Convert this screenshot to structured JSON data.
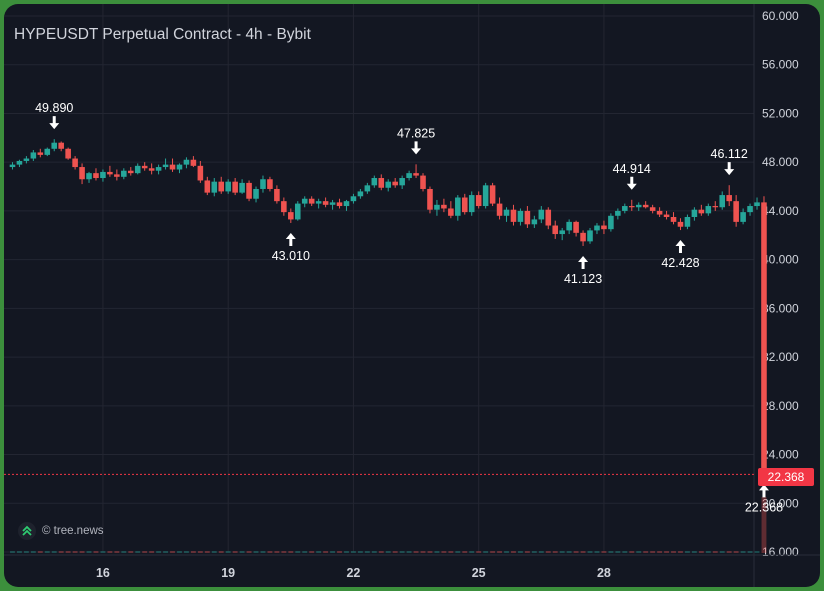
{
  "title": "HYPEUSDT Perpetual Contract - 4h - Bybit",
  "watermark": "© tree.news",
  "last_price": "22.368",
  "colors": {
    "up": "#26a69a",
    "down": "#ef5350",
    "bg": "#131722",
    "grid": "#232632",
    "axis_text": "#d1d4dc",
    "last_line": "#f23645"
  },
  "chart_data": {
    "type": "candlestick",
    "title": "HYPEUSDT Perpetual Contract - 4h - Bybit",
    "ylim": [
      16,
      60
    ],
    "y_ticks": [
      "60.000",
      "56.000",
      "52.000",
      "48.000",
      "44.000",
      "40.000",
      "36.000",
      "32.000",
      "28.000",
      "24.000",
      "20.000",
      "16.000"
    ],
    "x_ticks": [
      {
        "label": "16",
        "day": 16
      },
      {
        "label": "19",
        "day": 19
      },
      {
        "label": "22",
        "day": 22
      },
      {
        "label": "25",
        "day": 25
      },
      {
        "label": "28",
        "day": 28
      }
    ],
    "x_start_day": 13.75,
    "candles": [
      [
        47.6,
        48.0,
        47.4,
        47.8
      ],
      [
        47.8,
        48.2,
        47.6,
        48.1
      ],
      [
        48.1,
        48.5,
        47.9,
        48.3
      ],
      [
        48.3,
        49.0,
        48.1,
        48.8
      ],
      [
        48.8,
        49.1,
        48.4,
        48.6
      ],
      [
        48.6,
        49.2,
        48.5,
        49.1
      ],
      [
        49.1,
        49.89,
        48.9,
        49.6
      ],
      [
        49.6,
        49.7,
        48.9,
        49.1
      ],
      [
        49.1,
        49.2,
        48.2,
        48.3
      ],
      [
        48.3,
        48.5,
        47.4,
        47.6
      ],
      [
        47.6,
        47.9,
        46.2,
        46.6
      ],
      [
        46.6,
        47.2,
        46.3,
        47.1
      ],
      [
        47.1,
        47.5,
        46.5,
        46.7
      ],
      [
        46.7,
        47.4,
        46.4,
        47.2
      ],
      [
        47.2,
        47.7,
        46.8,
        47.0
      ],
      [
        47.0,
        47.4,
        46.5,
        46.8
      ],
      [
        46.8,
        47.5,
        46.6,
        47.3
      ],
      [
        47.3,
        47.6,
        46.9,
        47.1
      ],
      [
        47.1,
        47.9,
        47.0,
        47.7
      ],
      [
        47.7,
        48.0,
        47.3,
        47.5
      ],
      [
        47.5,
        47.9,
        47.0,
        47.3
      ],
      [
        47.3,
        47.8,
        47.0,
        47.6
      ],
      [
        47.6,
        48.3,
        47.4,
        47.8
      ],
      [
        47.8,
        48.3,
        47.2,
        47.4
      ],
      [
        47.4,
        47.9,
        47.1,
        47.8
      ],
      [
        47.8,
        48.4,
        47.5,
        48.2
      ],
      [
        48.2,
        48.5,
        47.6,
        47.7
      ],
      [
        47.7,
        48.1,
        46.3,
        46.5
      ],
      [
        46.5,
        46.8,
        45.3,
        45.5
      ],
      [
        45.5,
        46.7,
        45.2,
        46.4
      ],
      [
        46.4,
        46.8,
        45.4,
        45.6
      ],
      [
        45.6,
        46.6,
        45.4,
        46.4
      ],
      [
        46.4,
        46.7,
        45.3,
        45.5
      ],
      [
        45.5,
        46.6,
        45.4,
        46.3
      ],
      [
        46.3,
        46.5,
        44.8,
        45.0
      ],
      [
        45.0,
        46.0,
        44.7,
        45.8
      ],
      [
        45.8,
        46.9,
        45.5,
        46.6
      ],
      [
        46.6,
        46.8,
        45.6,
        45.8
      ],
      [
        45.8,
        46.1,
        44.6,
        44.8
      ],
      [
        44.8,
        45.1,
        43.6,
        43.9
      ],
      [
        43.9,
        44.2,
        43.01,
        43.3
      ],
      [
        43.3,
        44.8,
        43.2,
        44.6
      ],
      [
        44.6,
        45.2,
        44.3,
        45.0
      ],
      [
        45.0,
        45.2,
        44.4,
        44.6
      ],
      [
        44.6,
        45.0,
        44.2,
        44.8
      ],
      [
        44.8,
        45.1,
        44.3,
        44.5
      ],
      [
        44.5,
        44.9,
        44.1,
        44.7
      ],
      [
        44.7,
        45.0,
        44.2,
        44.4
      ],
      [
        44.4,
        44.9,
        44.0,
        44.8
      ],
      [
        44.8,
        45.4,
        44.6,
        45.2
      ],
      [
        45.2,
        45.8,
        45.0,
        45.6
      ],
      [
        45.6,
        46.3,
        45.4,
        46.1
      ],
      [
        46.1,
        46.9,
        45.9,
        46.7
      ],
      [
        46.7,
        47.0,
        45.7,
        45.9
      ],
      [
        45.9,
        46.6,
        45.6,
        46.4
      ],
      [
        46.4,
        46.7,
        45.9,
        46.1
      ],
      [
        46.1,
        46.9,
        45.8,
        46.7
      ],
      [
        46.7,
        47.3,
        46.5,
        47.1
      ],
      [
        47.1,
        47.825,
        46.7,
        46.9
      ],
      [
        46.9,
        47.1,
        45.6,
        45.8
      ],
      [
        45.8,
        46.0,
        43.8,
        44.1
      ],
      [
        44.1,
        44.9,
        43.6,
        44.5
      ],
      [
        44.5,
        45.0,
        43.9,
        44.2
      ],
      [
        44.2,
        44.8,
        43.4,
        43.6
      ],
      [
        43.6,
        45.3,
        43.2,
        45.1
      ],
      [
        45.1,
        45.4,
        43.7,
        43.9
      ],
      [
        43.9,
        45.6,
        43.6,
        45.3
      ],
      [
        45.3,
        45.6,
        44.2,
        44.4
      ],
      [
        44.4,
        46.3,
        44.2,
        46.1
      ],
      [
        46.1,
        46.3,
        44.4,
        44.6
      ],
      [
        44.6,
        45.1,
        43.3,
        43.6
      ],
      [
        43.6,
        44.3,
        43.1,
        44.1
      ],
      [
        44.1,
        44.5,
        42.8,
        43.1
      ],
      [
        43.1,
        44.2,
        42.8,
        44.0
      ],
      [
        44.0,
        44.4,
        42.6,
        42.9
      ],
      [
        42.9,
        43.6,
        42.6,
        43.3
      ],
      [
        43.3,
        44.4,
        43.0,
        44.1
      ],
      [
        44.1,
        44.3,
        42.5,
        42.8
      ],
      [
        42.8,
        43.2,
        41.7,
        42.1
      ],
      [
        42.1,
        42.6,
        41.6,
        42.4
      ],
      [
        42.4,
        43.3,
        42.1,
        43.1
      ],
      [
        43.1,
        43.2,
        41.9,
        42.2
      ],
      [
        42.2,
        42.4,
        41.123,
        41.5
      ],
      [
        41.5,
        42.6,
        41.3,
        42.4
      ],
      [
        42.4,
        43.0,
        42.1,
        42.8
      ],
      [
        42.8,
        43.2,
        42.1,
        42.5
      ],
      [
        42.5,
        43.8,
        42.3,
        43.6
      ],
      [
        43.6,
        44.2,
        43.3,
        44.0
      ],
      [
        44.0,
        44.6,
        43.8,
        44.4
      ],
      [
        44.4,
        44.914,
        44.0,
        44.3
      ],
      [
        44.3,
        44.7,
        44.0,
        44.5
      ],
      [
        44.5,
        44.8,
        44.2,
        44.3
      ],
      [
        44.3,
        44.5,
        43.8,
        44.0
      ],
      [
        44.0,
        44.3,
        43.5,
        43.7
      ],
      [
        43.7,
        44.0,
        43.3,
        43.5
      ],
      [
        43.5,
        43.9,
        42.9,
        43.1
      ],
      [
        43.1,
        43.4,
        42.428,
        42.7
      ],
      [
        42.7,
        43.7,
        42.5,
        43.5
      ],
      [
        43.5,
        44.3,
        43.2,
        44.1
      ],
      [
        44.1,
        44.5,
        43.6,
        43.8
      ],
      [
        43.8,
        44.6,
        43.6,
        44.4
      ],
      [
        44.4,
        44.8,
        44.0,
        44.3
      ],
      [
        44.3,
        45.6,
        44.1,
        45.3
      ],
      [
        45.3,
        46.112,
        44.4,
        44.8
      ],
      [
        44.8,
        45.3,
        42.7,
        43.1
      ],
      [
        43.1,
        44.2,
        42.9,
        43.9
      ],
      [
        43.9,
        44.6,
        43.6,
        44.4
      ],
      [
        44.4,
        45.1,
        44.1,
        44.7
      ],
      [
        44.7,
        45.2,
        22.368,
        22.368
      ]
    ],
    "annotations": [
      {
        "label": "49.890",
        "index": 6,
        "value": 49.89,
        "position": "above"
      },
      {
        "label": "43.010",
        "index": 40,
        "value": 43.01,
        "position": "below"
      },
      {
        "label": "47.825",
        "index": 58,
        "value": 47.825,
        "position": "above"
      },
      {
        "label": "41.123",
        "index": 82,
        "value": 41.123,
        "position": "below"
      },
      {
        "label": "44.914",
        "index": 89,
        "value": 44.914,
        "position": "above"
      },
      {
        "label": "42.428",
        "index": 96,
        "value": 42.428,
        "position": "below"
      },
      {
        "label": "46.112",
        "index": 103,
        "value": 46.112,
        "position": "above"
      },
      {
        "label": "22.368",
        "index": 108,
        "value": 22.368,
        "position": "below"
      }
    ],
    "last_price": 22.368
  }
}
